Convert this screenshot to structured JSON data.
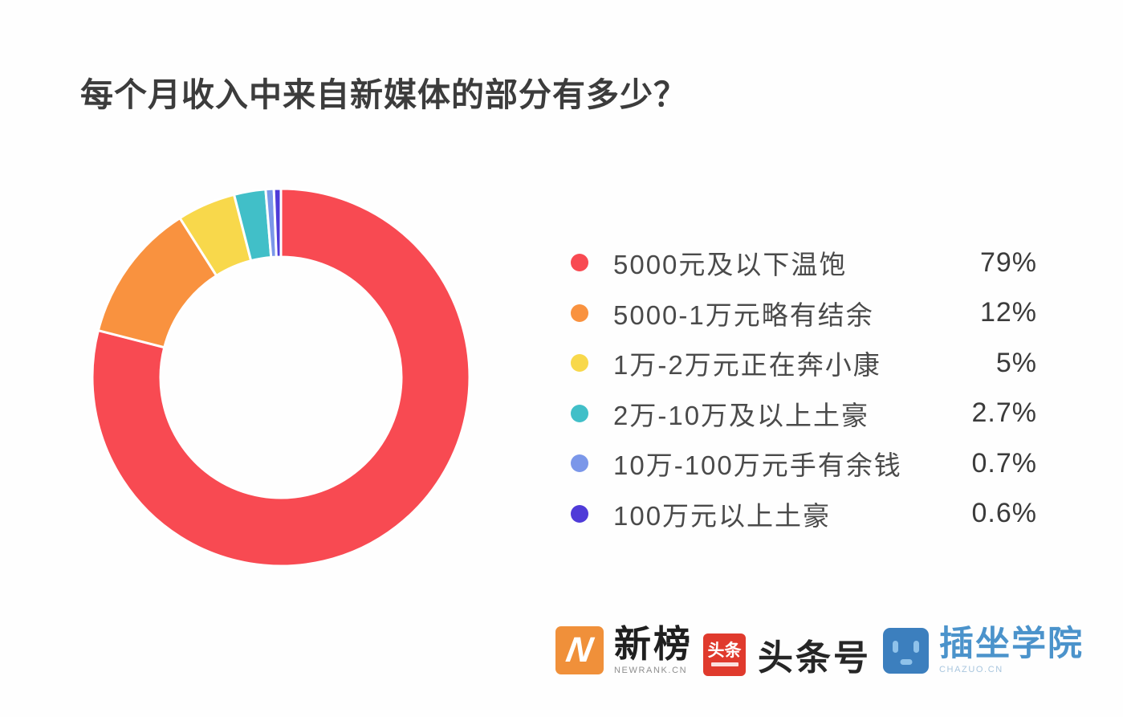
{
  "header": {
    "title": "每个月收入中来自新媒体的部分有多少？"
  },
  "chart_data": {
    "type": "pie",
    "subtype": "donut",
    "title": "每个月收入中来自新媒体的部分有多少？",
    "categories": [
      "5000元及以下温饱",
      "5000-1万元略有结余",
      "1万-2万元正在奔小康",
      "2万-10万及以上土豪",
      "10万-100万元手有余钱",
      "100万元以上土豪"
    ],
    "values": [
      79,
      12,
      5,
      2.7,
      0.7,
      0.6
    ],
    "unit": "%",
    "colors": [
      "#F84A52",
      "#F9923F",
      "#F8D84B",
      "#41BFC8",
      "#7B97E9",
      "#4F3BD8"
    ],
    "start_angle_deg": 0,
    "direction": "clockwise",
    "inner_radius_ratio": 0.64,
    "slice_gap_color": "#FFFFFF",
    "legend_position": "right"
  },
  "legend": {
    "items": [
      {
        "label": "5000元及以下温饱",
        "value_label": "79%",
        "color": "#F84A52"
      },
      {
        "label": "5000-1万元略有结余",
        "value_label": "12%",
        "color": "#F9923F"
      },
      {
        "label": "1万-2万元正在奔小康",
        "value_label": "5%",
        "color": "#F8D84B"
      },
      {
        "label": "2万-10万及以上土豪",
        "value_label": "2.7%",
        "color": "#41BFC8"
      },
      {
        "label": "10万-100万元手有余钱",
        "value_label": "0.7%",
        "color": "#7B97E9"
      },
      {
        "label": "100万元以上土豪",
        "value_label": "0.6%",
        "color": "#4F3BD8"
      }
    ]
  },
  "footer": {
    "logos": [
      {
        "id": "newrank",
        "icon": "newrank-n-icon",
        "icon_letter": "N",
        "icon_color": "#F0903A",
        "name_text": "新榜",
        "sub_text": "NEWRANK.CN"
      },
      {
        "id": "toutiao",
        "icon": "toutiao-badge-icon",
        "icon_text": "头条",
        "icon_color": "#E03A2D",
        "name_text": "头条号"
      },
      {
        "id": "chazuo",
        "icon": "robot-face-icon",
        "icon_color": "#3C7FBE",
        "name_text": "插坐学院",
        "sub_text": "CHAZUO.CN"
      }
    ]
  }
}
